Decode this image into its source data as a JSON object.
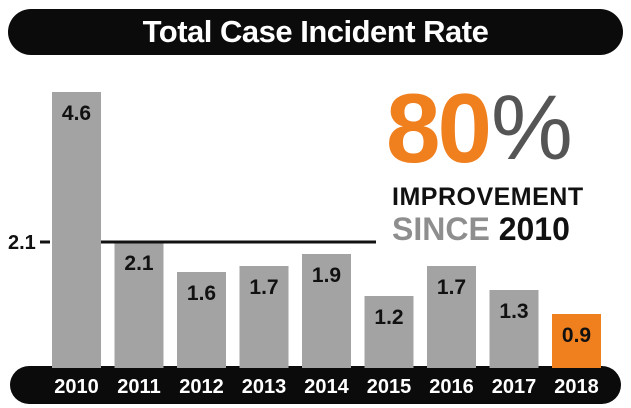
{
  "title": "Total Case Incident Rate",
  "callout": {
    "percent_value": "80",
    "percent_symbol": "%",
    "line1": "IMPROVEMENT",
    "line2_word": "SINCE",
    "line2_year": "2010"
  },
  "reference_line": {
    "value": 2.1,
    "label": "2.1"
  },
  "colors": {
    "bar": "#a3a3a3",
    "highlight_bar": "#f07f1e",
    "dark": "#0b0b0b",
    "accent_text": "#f07f1e",
    "axis_text": "#ffffff"
  },
  "chart_data": {
    "type": "bar",
    "title": "Total Case Incident Rate",
    "categories": [
      "2010",
      "2011",
      "2012",
      "2013",
      "2014",
      "2015",
      "2016",
      "2017",
      "2018"
    ],
    "values": [
      4.6,
      2.1,
      1.6,
      1.7,
      1.9,
      1.2,
      1.7,
      1.3,
      0.9
    ],
    "value_labels": [
      "4.6",
      "2.1",
      "1.6",
      "1.7",
      "1.9",
      "1.2",
      "1.7",
      "1.3",
      "0.9"
    ],
    "highlight_category": "2018",
    "y_ticks": [
      2.1
    ],
    "ylim": [
      0,
      4.6
    ],
    "grid": false,
    "legend": "none"
  }
}
